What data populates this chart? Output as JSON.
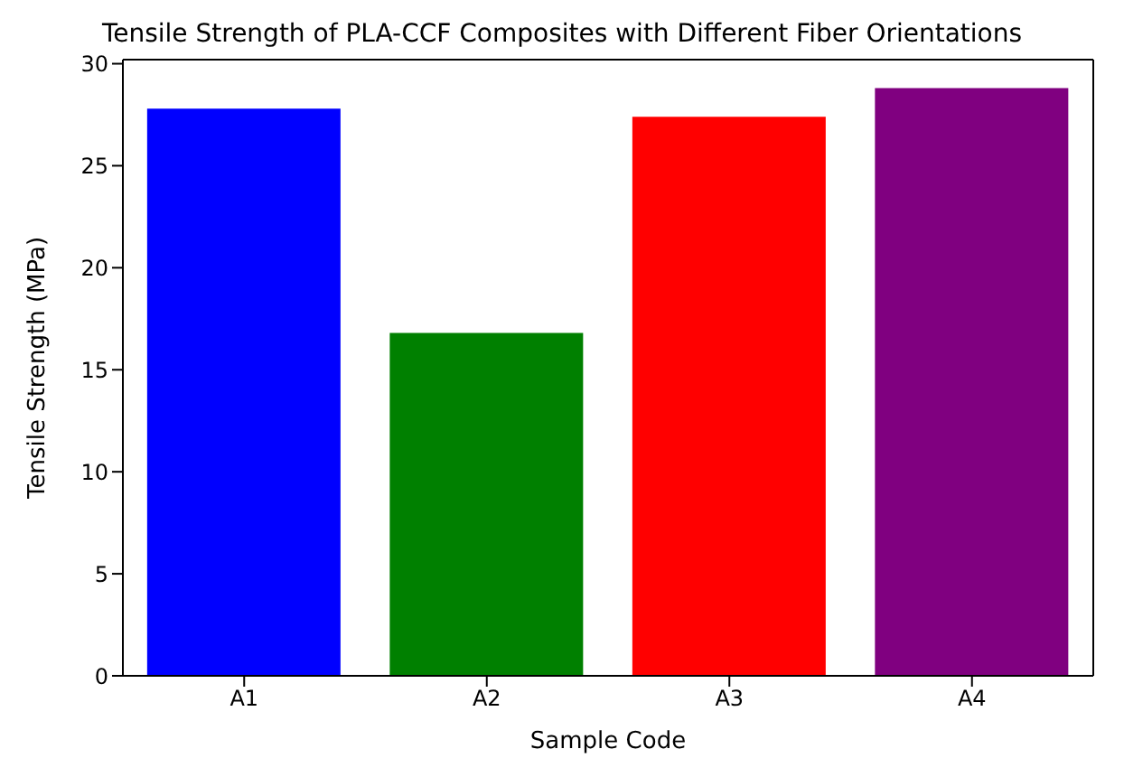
{
  "chart_data": {
    "type": "bar",
    "title": "Tensile Strength of PLA-CCF Composites with Different Fiber Orientations",
    "xlabel": "Sample Code",
    "ylabel": "Tensile Strength (MPa)",
    "categories": [
      "A1",
      "A2",
      "A3",
      "A4"
    ],
    "values": [
      27.8,
      16.8,
      27.4,
      28.8
    ],
    "colors": [
      "#0000ff",
      "#008000",
      "#ff0000",
      "#800080"
    ],
    "ylim": [
      0,
      30.2
    ],
    "yticks": [
      0,
      5,
      10,
      15,
      20,
      25,
      30
    ],
    "grid": false,
    "legend": false
  }
}
